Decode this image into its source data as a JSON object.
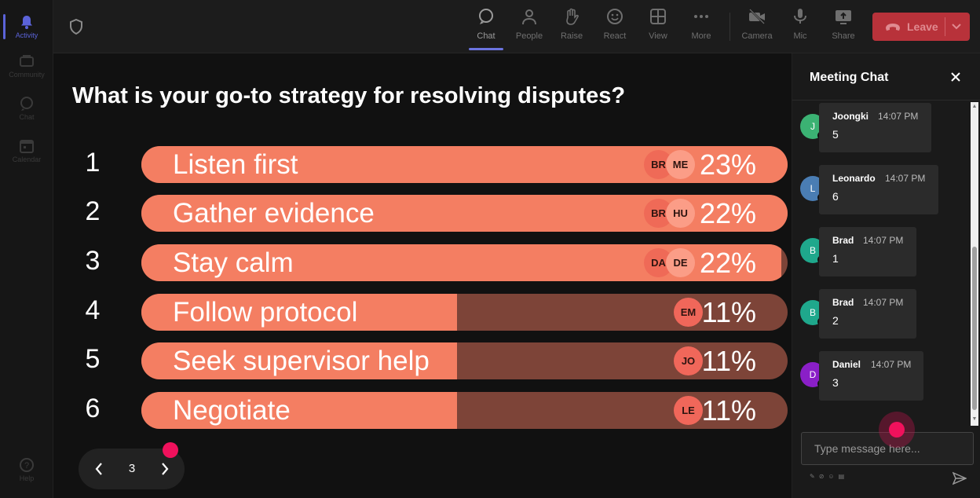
{
  "rail": [
    {
      "label": "Activity",
      "icon": "bell-icon",
      "active": true
    },
    {
      "label": "Community",
      "icon": "community-icon"
    },
    {
      "label": "Chat",
      "icon": "chat-icon"
    },
    {
      "label": "Calendar",
      "icon": "calendar-icon"
    },
    {
      "label": "Help",
      "icon": "help-icon"
    }
  ],
  "toolbar": {
    "chat": "Chat",
    "people": "People",
    "raise": "Raise",
    "react": "React",
    "view": "View",
    "more": "More",
    "camera": "Camera",
    "mic": "Mic",
    "share": "Share",
    "leave": "Leave"
  },
  "poll": {
    "question": "What is your go-to strategy for resolving disputes?",
    "options": [
      {
        "num": "1",
        "label": "Listen first",
        "pct": "23%",
        "fill": 23,
        "avatars": [
          "BR",
          "ME"
        ]
      },
      {
        "num": "2",
        "label": "Gather evidence",
        "pct": "22%",
        "fill": 22,
        "avatars": [
          "BR",
          "HU"
        ]
      },
      {
        "num": "3",
        "label": "Stay calm",
        "pct": "22%",
        "fill": 22,
        "avatars": [
          "DA",
          "DE"
        ]
      },
      {
        "num": "4",
        "label": "Follow protocol",
        "pct": "11%",
        "fill": 11,
        "avatars": [
          "EM"
        ]
      },
      {
        "num": "5",
        "label": "Seek supervisor help",
        "pct": "11%",
        "fill": 11,
        "avatars": [
          "JO"
        ]
      },
      {
        "num": "6",
        "label": "Negotiate",
        "pct": "11%",
        "fill": 11,
        "avatars": [
          "LE"
        ]
      }
    ],
    "page": "3"
  },
  "chat": {
    "title": "Meeting Chat",
    "input_placeholder": "Type message here...",
    "messages": [
      {
        "initial": "J",
        "name": "Joongki",
        "time": "14:07 PM",
        "text": "5",
        "color": "#3bb273"
      },
      {
        "initial": "L",
        "name": "Leonardo",
        "time": "14:07 PM",
        "text": "6",
        "color": "#4a7db3"
      },
      {
        "initial": "B",
        "name": "Brad",
        "time": "14:07 PM",
        "text": "1",
        "color": "#1fa88c"
      },
      {
        "initial": "B",
        "name": "Brad",
        "time": "14:07 PM",
        "text": "2",
        "color": "#1fa88c"
      },
      {
        "initial": "D",
        "name": "Daniel",
        "time": "14:07 PM",
        "text": "3",
        "color": "#8a1fc7"
      }
    ]
  }
}
